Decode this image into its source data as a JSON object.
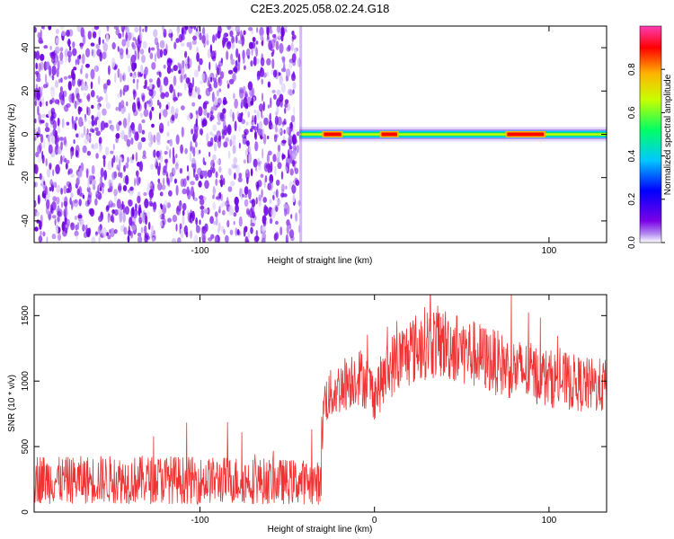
{
  "title": "C2E3.2025.058.02.24.G18",
  "chart_data": [
    {
      "type": "heatmap",
      "xlabel": "Height of straight line (km)",
      "ylabel": "Frequency (Hz)",
      "xlim": [
        -195,
        133
      ],
      "ylim": [
        -50,
        50
      ],
      "x_ticks": [
        -100,
        100
      ],
      "y_ticks": [
        -40,
        -20,
        0,
        20,
        40
      ],
      "noise_region_x": [
        -195,
        -43
      ],
      "signal_band_x": [
        -43,
        133
      ],
      "signal_band_freq_hz": 0,
      "signal_peaks": [
        {
          "x": [
            -30,
            -18
          ],
          "amplitude": 0.95
        },
        {
          "x": [
            3,
            14
          ],
          "amplitude": 0.9
        },
        {
          "x": [
            75,
            98
          ],
          "amplitude": 0.9
        }
      ],
      "colorbar": {
        "label": "Normalized spectral amplitude",
        "ticks": [
          0.0,
          0.2,
          0.4,
          0.6,
          0.8
        ],
        "range": [
          0,
          1
        ],
        "colors": [
          "#ffffff",
          "#7a00e6",
          "#0000ff",
          "#00c8ff",
          "#00ff64",
          "#c8ff00",
          "#ffb400",
          "#ff0000",
          "#ff3cb4"
        ]
      }
    },
    {
      "type": "line",
      "xlabel": "Height of straight line (km)",
      "ylabel": "SNR (10 * v/v)",
      "xlim": [
        -195,
        133
      ],
      "ylim": [
        0,
        1660
      ],
      "x_ticks": [
        -100,
        0,
        100
      ],
      "y_ticks": [
        0,
        500,
        1000,
        1500
      ],
      "color": "#f03232",
      "x": [
        -195,
        -180,
        -160,
        -140,
        -120,
        -100,
        -80,
        -60,
        -40,
        -31,
        -29,
        -20,
        -10,
        -5,
        0,
        10,
        20,
        30,
        40,
        50,
        60,
        70,
        80,
        90,
        100,
        110,
        120,
        133
      ],
      "values": [
        260,
        240,
        250,
        245,
        250,
        240,
        245,
        235,
        230,
        220,
        850,
        950,
        1050,
        1000,
        900,
        1120,
        1220,
        1300,
        1290,
        1240,
        1190,
        1140,
        1090,
        1060,
        1020,
        1000,
        970,
        960
      ]
    }
  ]
}
